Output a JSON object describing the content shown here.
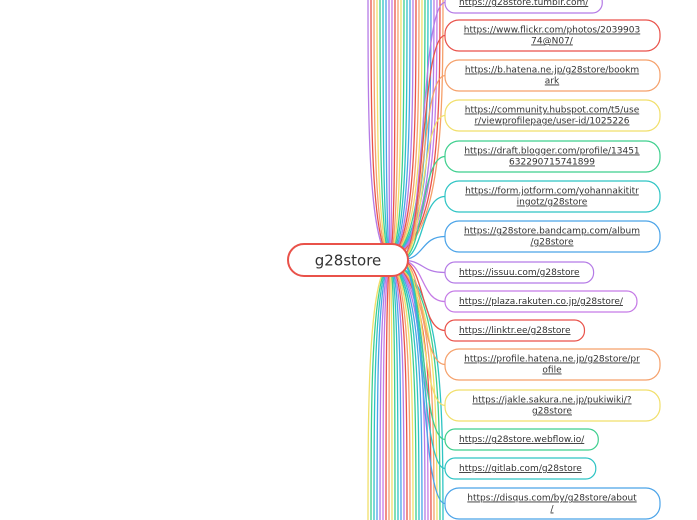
{
  "center": {
    "label": "g28store"
  },
  "nodes": [
    {
      "lines": [
        "https://g28store.tumblr.com/"
      ],
      "color": "#b57be6"
    },
    {
      "lines": [
        "https://www.flickr.com/photos/2039903",
        "74@N07/"
      ],
      "color": "#e9524a"
    },
    {
      "lines": [
        "https://b.hatena.ne.jp/g28store/bookm",
        "ark"
      ],
      "color": "#f5a06a"
    },
    {
      "lines": [
        "https://community.hubspot.com/t5/use",
        "r/viewprofilepage/user-id/1025226"
      ],
      "color": "#f1df6a"
    },
    {
      "lines": [
        "https://draft.blogger.com/profile/13451",
        "632290715741899"
      ],
      "color": "#3ecf8e"
    },
    {
      "lines": [
        "https://form.jotform.com/yohannakititr",
        "ingotz/g28store"
      ],
      "color": "#2ec4c4"
    },
    {
      "lines": [
        "https://g28store.bandcamp.com/album",
        "/g28store"
      ],
      "color": "#4aa3e8"
    },
    {
      "lines": [
        "https://issuu.com/g28store"
      ],
      "color": "#b57be6"
    },
    {
      "lines": [
        "https://plaza.rakuten.co.jp/g28store/"
      ],
      "color": "#c57be6"
    },
    {
      "lines": [
        "https://linktr.ee/g28store"
      ],
      "color": "#e9524a"
    },
    {
      "lines": [
        "https://profile.hatena.ne.jp/g28store/pr",
        "ofile"
      ],
      "color": "#f5a06a"
    },
    {
      "lines": [
        "https://jakle.sakura.ne.jp/pukiwiki/?",
        "g28store"
      ],
      "color": "#f1df6a"
    },
    {
      "lines": [
        "https://g28store.webflow.io/"
      ],
      "color": "#3ecf8e"
    },
    {
      "lines": [
        "https://gitlab.com/g28store"
      ],
      "color": "#2ec4c4"
    },
    {
      "lines": [
        "https://disqus.com/by/g28store/about",
        "/"
      ],
      "color": "#4aa3e8"
    }
  ]
}
